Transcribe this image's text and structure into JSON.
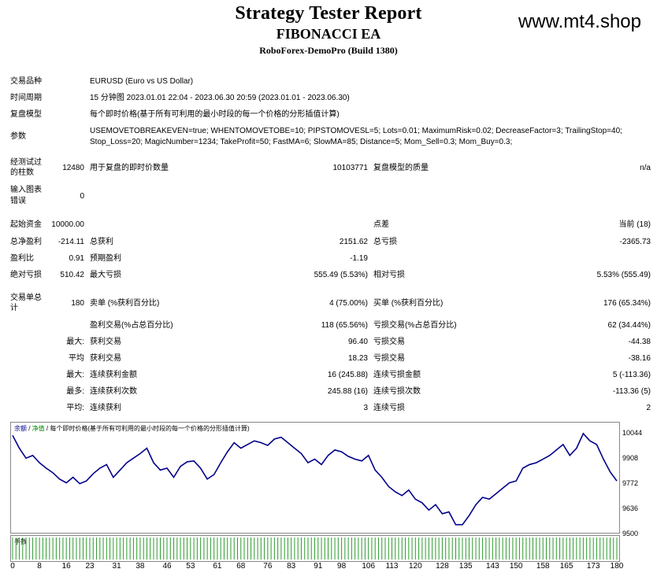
{
  "header": {
    "title": "Strategy Tester Report",
    "ea_name": "FIBONACCI EA",
    "server": "RoboForex-DemoPro (Build 1380)",
    "site": "www.mt4.shop"
  },
  "info": {
    "symbol_label": "交易品种",
    "symbol_value": "EURUSD (Euro vs US Dollar)",
    "period_label": "时间周期",
    "period_value": "15 分钟图 2023.01.01 22:04 - 2023.06.30 20:59 (2023.01.01 - 2023.06.30)",
    "model_label": "复盘模型",
    "model_value": "每个即时价格(基于所有可利用的最小时段的每一个价格的分形插值计算)",
    "params_label": "参数",
    "params_line1": "USEMOVETOBREAKEVEN=true; WHENTOMOVETOBE=10; PIPSTOMOVESL=5; Lots=0.01; MaximumRisk=0.02; DecreaseFactor=3; TrailingStop=40;",
    "params_line2": "Stop_Loss=20; MagicNumber=1234; TakeProfit=50; FastMA=6; SlowMA=85; Distance=5; Mom_Sell=0.3; Mom_Buy=0.3;"
  },
  "bars": {
    "label_line1": "经测试过",
    "label_line2": "的柱数",
    "value": "12480",
    "ticks_label": "用于复盘的即时价数量",
    "ticks_value": "10103771",
    "quality_label": "复盘模型的质量",
    "quality_value": "n/a"
  },
  "errors": {
    "label_line1": "输入图表",
    "label_line2": "错误",
    "value": "0"
  },
  "stats": {
    "deposit_label": "起始资金",
    "deposit_value": "10000.00",
    "spread_label": "点差",
    "spread_value": "当前 (18)",
    "net_label": "总净盈利",
    "net_value": "-214.11",
    "gross_profit_label": "总获利",
    "gross_profit_value": "2151.62",
    "gross_loss_label": "总亏损",
    "gross_loss_value": "-2365.73",
    "pf_label": "盈利比",
    "pf_value": "0.91",
    "expected_label": "预期盈利",
    "expected_value": "-1.19",
    "abs_dd_label": "绝对亏损",
    "abs_dd_value": "510.42",
    "max_dd_label": "最大亏损",
    "max_dd_value": "555.49 (5.53%)",
    "rel_dd_label": "相对亏损",
    "rel_dd_value": "5.53% (555.49)",
    "trades_label_line1": "交易单总",
    "trades_label_line2": "计",
    "trades_value": "180",
    "short_label": "卖单 (%获利百分比)",
    "short_value": "4 (75.00%)",
    "long_label": "买单 (%获利百分比)",
    "long_value": "176 (65.34%)",
    "profit_trades_label": "盈利交易(%占总百分比)",
    "profit_trades_value": "118 (65.56%)",
    "loss_trades_label": "亏损交易(%占总百分比)",
    "loss_trades_value": "62 (34.44%)",
    "largest_label": "最大:",
    "largest_profit_label": "获利交易",
    "largest_profit_value": "96.40",
    "largest_loss_label": "亏损交易",
    "largest_loss_value": "-44.38",
    "average_label": "平均",
    "average_profit_label": "获利交易",
    "average_profit_value": "18.23",
    "average_loss_label": "亏损交易",
    "average_loss_value": "-38.16",
    "max_label": "最大:",
    "max_cons_wins_label": "连续获利金额",
    "max_cons_wins_value": "16 (245.88)",
    "max_cons_losses_label": "连续亏损金额",
    "max_cons_losses_value": "5 (-113.36)",
    "maximal_label": "最多:",
    "maximal_cons_profit_label": "连续获利次数",
    "maximal_cons_profit_value": "245.88 (16)",
    "maximal_cons_loss_label": "连续亏损次数",
    "maximal_cons_loss_value": "-113.36 (5)",
    "avg_cons_label": "平均:",
    "avg_cons_wins_label": "连续获利",
    "avg_cons_wins_value": "3",
    "avg_cons_losses_label": "连续亏损",
    "avg_cons_losses_value": "2"
  },
  "chart_data": {
    "type": "line",
    "legend_balance": "余额",
    "legend_sep1": " / ",
    "legend_equity": "净值",
    "legend_sep2": " / ",
    "legend_model": "每个即时价格(基于所有可利用的最小时段的每一个价格的分形插值计算)",
    "volume_label": "手数",
    "y_ticks": [
      "10044",
      "9908",
      "9772",
      "9636",
      "9500"
    ],
    "ylim": [
      9500,
      10044
    ],
    "x_ticks": [
      "0",
      "8",
      "16",
      "23",
      "31",
      "38",
      "46",
      "53",
      "61",
      "68",
      "76",
      "83",
      "91",
      "98",
      "106",
      "113",
      "120",
      "128",
      "135",
      "143",
      "150",
      "158",
      "165",
      "173",
      "180"
    ],
    "xlim": [
      0,
      180
    ],
    "series": [
      {
        "color": "#00008b",
        "x": [
          0,
          2,
          4,
          6,
          8,
          10,
          12,
          14,
          16,
          18,
          20,
          22,
          24,
          26,
          28,
          30,
          32,
          34,
          36,
          38,
          40,
          42,
          44,
          46,
          48,
          50,
          52,
          54,
          56,
          58,
          60,
          62,
          64,
          66,
          68,
          70,
          72,
          74,
          76,
          78,
          80,
          82,
          84,
          86,
          88,
          90,
          92,
          94,
          96,
          98,
          100,
          102,
          104,
          106,
          108,
          110,
          112,
          114,
          116,
          118,
          120,
          122,
          124,
          126,
          128,
          130,
          132,
          134,
          136,
          138,
          140,
          142,
          144,
          146,
          148,
          150,
          152,
          154,
          156,
          158,
          160,
          162,
          164,
          166,
          168,
          170,
          172,
          174,
          176,
          178,
          180
        ],
        "y": [
          10030,
          9960,
          9905,
          9920,
          9880,
          9850,
          9825,
          9790,
          9770,
          9800,
          9765,
          9780,
          9820,
          9850,
          9870,
          9800,
          9840,
          9880,
          9905,
          9930,
          9960,
          9880,
          9840,
          9850,
          9800,
          9860,
          9885,
          9890,
          9850,
          9790,
          9815,
          9880,
          9940,
          9990,
          9960,
          9980,
          10000,
          9990,
          9975,
          10010,
          10020,
          9990,
          9960,
          9930,
          9880,
          9900,
          9870,
          9920,
          9950,
          9940,
          9915,
          9900,
          9890,
          9920,
          9840,
          9800,
          9750,
          9720,
          9700,
          9730,
          9680,
          9660,
          9620,
          9650,
          9600,
          9610,
          9540,
          9540,
          9590,
          9650,
          9690,
          9680,
          9710,
          9740,
          9770,
          9780,
          9850,
          9870,
          9880,
          9900,
          9920,
          9950,
          9980,
          9920,
          9960,
          10040,
          10000,
          9980,
          9900,
          9830,
          9780
        ]
      }
    ]
  }
}
